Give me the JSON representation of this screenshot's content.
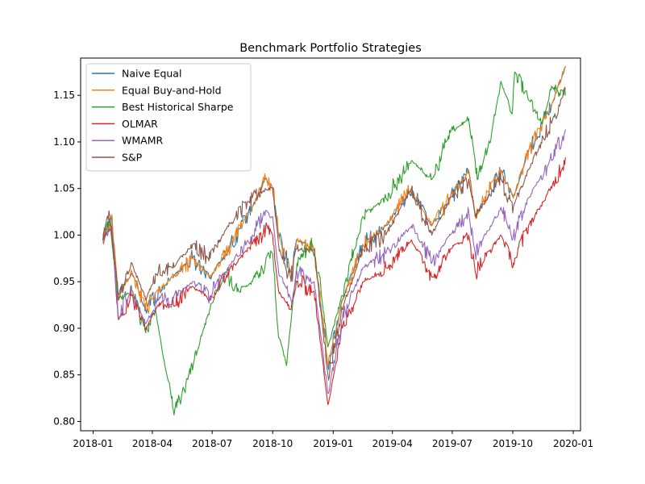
{
  "chart_data": {
    "type": "line",
    "title": "Benchmark Portfolio Strategies",
    "xlabel": "",
    "ylabel": "",
    "xlim": [
      "2017-12-13",
      "2020-01-12"
    ],
    "ylim": [
      0.79,
      1.19
    ],
    "x_ticks": [
      "2018-01",
      "2018-04",
      "2018-07",
      "2018-10",
      "2019-01",
      "2019-04",
      "2019-07",
      "2019-10",
      "2020-01"
    ],
    "x_tick_dates": [
      "2018-01-01",
      "2018-04-01",
      "2018-07-01",
      "2018-10-01",
      "2019-01-01",
      "2019-04-01",
      "2019-07-01",
      "2019-10-01",
      "2020-01-01"
    ],
    "y_ticks": [
      0.8,
      0.85,
      0.9,
      0.95,
      1.0,
      1.05,
      1.1,
      1.15
    ],
    "y_tick_labels": [
      "0.80",
      "0.85",
      "0.90",
      "0.95",
      "1.00",
      "1.05",
      "1.10",
      "1.15"
    ],
    "grid": false,
    "legend_position": "top-left",
    "series": [
      {
        "name": "Naive Equal",
        "color": "#1f77b4",
        "points": [
          [
            "2018-01-16",
            0.995
          ],
          [
            "2018-01-29",
            1.02
          ],
          [
            "2018-02-08",
            0.935
          ],
          [
            "2018-03-01",
            0.96
          ],
          [
            "2018-03-22",
            0.92
          ],
          [
            "2018-04-10",
            0.94
          ],
          [
            "2018-05-01",
            0.955
          ],
          [
            "2018-06-01",
            0.975
          ],
          [
            "2018-06-28",
            0.955
          ],
          [
            "2018-07-25",
            0.985
          ],
          [
            "2018-08-31",
            1.03
          ],
          [
            "2018-09-20",
            1.06
          ],
          [
            "2018-10-01",
            1.05
          ],
          [
            "2018-10-10",
            1.0
          ],
          [
            "2018-10-29",
            0.96
          ],
          [
            "2018-11-07",
            0.995
          ],
          [
            "2018-12-03",
            0.985
          ],
          [
            "2018-12-24",
            0.86
          ],
          [
            "2019-01-15",
            0.93
          ],
          [
            "2019-02-15",
            0.99
          ],
          [
            "2019-03-22",
            1.01
          ],
          [
            "2019-04-30",
            1.05
          ],
          [
            "2019-05-31",
            1.01
          ],
          [
            "2019-06-28",
            1.04
          ],
          [
            "2019-07-26",
            1.07
          ],
          [
            "2019-08-05",
            1.02
          ],
          [
            "2019-09-13",
            1.07
          ],
          [
            "2019-10-02",
            1.04
          ],
          [
            "2019-10-25",
            1.09
          ],
          [
            "2019-11-29",
            1.14
          ],
          [
            "2019-12-20",
            1.18
          ]
        ]
      },
      {
        "name": "Equal Buy-and-Hold",
        "color": "#ff7f0e",
        "points": [
          [
            "2018-01-16",
            0.995
          ],
          [
            "2018-01-29",
            1.022
          ],
          [
            "2018-02-08",
            0.935
          ],
          [
            "2018-03-01",
            0.96
          ],
          [
            "2018-03-22",
            0.92
          ],
          [
            "2018-04-10",
            0.94
          ],
          [
            "2018-05-01",
            0.955
          ],
          [
            "2018-06-01",
            0.975
          ],
          [
            "2018-06-28",
            0.955
          ],
          [
            "2018-07-25",
            0.985
          ],
          [
            "2018-08-31",
            1.03
          ],
          [
            "2018-09-20",
            1.062
          ],
          [
            "2018-10-01",
            1.05
          ],
          [
            "2018-10-10",
            1.0
          ],
          [
            "2018-10-29",
            0.96
          ],
          [
            "2018-11-07",
            0.995
          ],
          [
            "2018-12-03",
            0.985
          ],
          [
            "2018-12-24",
            0.86
          ],
          [
            "2019-01-15",
            0.93
          ],
          [
            "2019-02-15",
            0.99
          ],
          [
            "2019-03-22",
            1.01
          ],
          [
            "2019-04-30",
            1.05
          ],
          [
            "2019-05-31",
            1.01
          ],
          [
            "2019-06-28",
            1.04
          ],
          [
            "2019-07-26",
            1.07
          ],
          [
            "2019-08-05",
            1.02
          ],
          [
            "2019-09-13",
            1.07
          ],
          [
            "2019-10-02",
            1.04
          ],
          [
            "2019-10-25",
            1.09
          ],
          [
            "2019-11-29",
            1.14
          ],
          [
            "2019-12-20",
            1.181
          ]
        ]
      },
      {
        "name": "Best Historical Sharpe",
        "color": "#2ca02c",
        "points": [
          [
            "2018-01-16",
            0.995
          ],
          [
            "2018-01-26",
            1.018
          ],
          [
            "2018-02-08",
            0.93
          ],
          [
            "2018-03-01",
            0.94
          ],
          [
            "2018-03-22",
            0.895
          ],
          [
            "2018-04-06",
            0.92
          ],
          [
            "2018-04-20",
            0.86
          ],
          [
            "2018-05-05",
            0.81
          ],
          [
            "2018-05-25",
            0.845
          ],
          [
            "2018-06-25",
            0.915
          ],
          [
            "2018-07-20",
            0.96
          ],
          [
            "2018-08-10",
            0.94
          ],
          [
            "2018-08-31",
            0.95
          ],
          [
            "2018-09-20",
            0.97
          ],
          [
            "2018-10-01",
            0.98
          ],
          [
            "2018-10-10",
            0.89
          ],
          [
            "2018-10-22",
            0.86
          ],
          [
            "2018-11-07",
            0.97
          ],
          [
            "2018-11-28",
            0.99
          ],
          [
            "2018-12-10",
            0.96
          ],
          [
            "2018-12-24",
            0.88
          ],
          [
            "2019-01-15",
            0.935
          ],
          [
            "2019-02-15",
            1.02
          ],
          [
            "2019-03-22",
            1.04
          ],
          [
            "2019-04-30",
            1.08
          ],
          [
            "2019-05-31",
            1.06
          ],
          [
            "2019-06-28",
            1.11
          ],
          [
            "2019-07-26",
            1.125
          ],
          [
            "2019-08-09",
            1.06
          ],
          [
            "2019-08-30",
            1.11
          ],
          [
            "2019-09-13",
            1.165
          ],
          [
            "2019-09-30",
            1.13
          ],
          [
            "2019-10-04",
            1.175
          ],
          [
            "2019-10-25",
            1.145
          ],
          [
            "2019-11-15",
            1.12
          ],
          [
            "2019-11-29",
            1.16
          ],
          [
            "2019-12-20",
            1.15
          ]
        ]
      },
      {
        "name": "OLMAR",
        "color": "#d62728",
        "points": [
          [
            "2018-01-16",
            0.995
          ],
          [
            "2018-01-29",
            1.01
          ],
          [
            "2018-02-08",
            0.91
          ],
          [
            "2018-03-01",
            0.935
          ],
          [
            "2018-03-22",
            0.9
          ],
          [
            "2018-04-10",
            0.925
          ],
          [
            "2018-05-01",
            0.925
          ],
          [
            "2018-06-01",
            0.945
          ],
          [
            "2018-06-28",
            0.93
          ],
          [
            "2018-07-25",
            0.96
          ],
          [
            "2018-08-31",
            0.99
          ],
          [
            "2018-09-20",
            1.005
          ],
          [
            "2018-10-01",
            1.0
          ],
          [
            "2018-10-10",
            0.94
          ],
          [
            "2018-10-29",
            0.92
          ],
          [
            "2018-11-07",
            0.95
          ],
          [
            "2018-12-03",
            0.94
          ],
          [
            "2018-12-24",
            0.818
          ],
          [
            "2019-01-15",
            0.9
          ],
          [
            "2019-02-15",
            0.95
          ],
          [
            "2019-03-22",
            0.965
          ],
          [
            "2019-04-30",
            0.995
          ],
          [
            "2019-05-31",
            0.955
          ],
          [
            "2019-06-28",
            0.985
          ],
          [
            "2019-07-26",
            1.0
          ],
          [
            "2019-08-05",
            0.96
          ],
          [
            "2019-09-13",
            1.0
          ],
          [
            "2019-10-02",
            0.97
          ],
          [
            "2019-10-25",
            1.01
          ],
          [
            "2019-11-29",
            1.05
          ],
          [
            "2019-12-20",
            1.083
          ]
        ]
      },
      {
        "name": "WMAMR",
        "color": "#9467bd",
        "points": [
          [
            "2018-01-16",
            0.992
          ],
          [
            "2018-01-29",
            1.01
          ],
          [
            "2018-02-08",
            0.915
          ],
          [
            "2018-03-01",
            0.94
          ],
          [
            "2018-03-22",
            0.905
          ],
          [
            "2018-04-10",
            0.93
          ],
          [
            "2018-05-01",
            0.93
          ],
          [
            "2018-06-01",
            0.95
          ],
          [
            "2018-06-28",
            0.935
          ],
          [
            "2018-07-25",
            0.965
          ],
          [
            "2018-08-31",
            1.0
          ],
          [
            "2018-09-20",
            1.025
          ],
          [
            "2018-10-01",
            1.02
          ],
          [
            "2018-10-10",
            0.96
          ],
          [
            "2018-10-29",
            0.93
          ],
          [
            "2018-11-07",
            0.96
          ],
          [
            "2018-12-03",
            0.95
          ],
          [
            "2018-12-24",
            0.83
          ],
          [
            "2019-01-15",
            0.91
          ],
          [
            "2019-02-15",
            0.965
          ],
          [
            "2019-03-22",
            0.98
          ],
          [
            "2019-04-30",
            1.01
          ],
          [
            "2019-05-31",
            0.97
          ],
          [
            "2019-06-28",
            1.0
          ],
          [
            "2019-07-26",
            1.025
          ],
          [
            "2019-08-05",
            0.98
          ],
          [
            "2019-09-13",
            1.03
          ],
          [
            "2019-10-02",
            1.0
          ],
          [
            "2019-10-25",
            1.04
          ],
          [
            "2019-11-29",
            1.08
          ],
          [
            "2019-12-20",
            1.113
          ]
        ]
      },
      {
        "name": "S&P",
        "color": "#8c564b",
        "points": [
          [
            "2018-01-16",
            1.0
          ],
          [
            "2018-01-26",
            1.022
          ],
          [
            "2018-02-08",
            0.935
          ],
          [
            "2018-03-01",
            0.97
          ],
          [
            "2018-03-22",
            0.93
          ],
          [
            "2018-04-10",
            0.96
          ],
          [
            "2018-05-01",
            0.965
          ],
          [
            "2018-06-01",
            0.99
          ],
          [
            "2018-06-28",
            0.975
          ],
          [
            "2018-07-25",
            1.01
          ],
          [
            "2018-08-31",
            1.04
          ],
          [
            "2018-09-20",
            1.05
          ],
          [
            "2018-10-01",
            1.05
          ],
          [
            "2018-10-10",
            0.99
          ],
          [
            "2018-10-29",
            0.95
          ],
          [
            "2018-11-07",
            0.985
          ],
          [
            "2018-12-03",
            0.985
          ],
          [
            "2018-12-24",
            0.85
          ],
          [
            "2019-01-15",
            0.92
          ],
          [
            "2019-02-15",
            0.985
          ],
          [
            "2019-03-22",
            1.0
          ],
          [
            "2019-04-30",
            1.05
          ],
          [
            "2019-05-31",
            1.0
          ],
          [
            "2019-06-28",
            1.04
          ],
          [
            "2019-07-26",
            1.06
          ],
          [
            "2019-08-05",
            1.02
          ],
          [
            "2019-09-13",
            1.06
          ],
          [
            "2019-10-02",
            1.03
          ],
          [
            "2019-10-25",
            1.07
          ],
          [
            "2019-11-29",
            1.12
          ],
          [
            "2019-12-20",
            1.157
          ]
        ]
      }
    ]
  }
}
